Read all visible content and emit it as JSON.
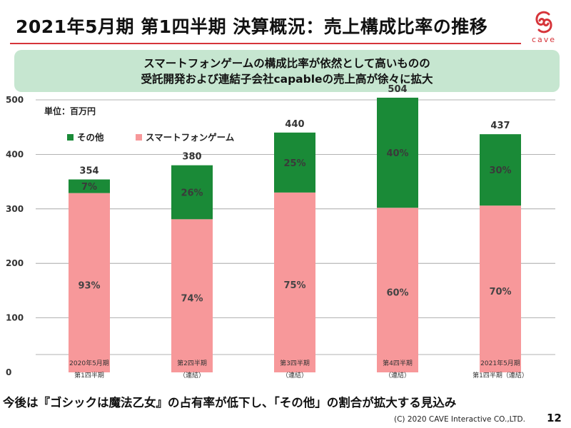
{
  "title": "2021年5月期 第1四半期 決算概況：売上構成比率の推移",
  "logo": {
    "text": "cave",
    "icon": "cave-logo-icon",
    "color": "#d6343a"
  },
  "banner": {
    "line1": "スマートフォンゲームの構成比率が依然として高いものの",
    "line2": "受託開発および連結子会社capableの売上高が徐々に拡大"
  },
  "colors": {
    "accent": "#d6343a",
    "banner_bg": "#c6e6d0",
    "other": "#1a8a37",
    "smartphone": "#f7989a"
  },
  "chart_data": {
    "type": "bar",
    "stacked": true,
    "unit_label": "単位：百万円",
    "categories": [
      [
        "2020年5月期",
        "第1四半期"
      ],
      [
        "第2四半期",
        "（連結）"
      ],
      [
        "第3四半期",
        "（連結）"
      ],
      [
        "第4四半期",
        "（連結）"
      ],
      [
        "2021年5月期",
        "第1四半期（連結）"
      ]
    ],
    "totals": [
      354,
      380,
      440,
      504,
      437
    ],
    "ylim": [
      0,
      500
    ],
    "yticks": [
      0,
      100,
      200,
      300,
      400,
      500
    ],
    "grid": true,
    "legend_position": "top-left",
    "series": [
      {
        "name": "スマートフォンゲーム",
        "color": "#f7989a",
        "values": [
          329,
          281,
          330,
          302,
          306
        ],
        "labels": [
          "93%",
          "74%",
          "75%",
          "60%",
          "70%"
        ]
      },
      {
        "name": "その他",
        "color": "#1a8a37",
        "values": [
          25,
          99,
          110,
          202,
          131
        ],
        "labels": [
          "7%",
          "26%",
          "25%",
          "40%",
          "30%"
        ]
      }
    ]
  },
  "footer": {
    "note": "今後は『ゴシックは魔法乙女』の占有率が低下し、「その他」の割合が拡大する見込み",
    "copyright": "(C) 2020 CAVE Interactive CO.,LTD.",
    "page": "12"
  }
}
